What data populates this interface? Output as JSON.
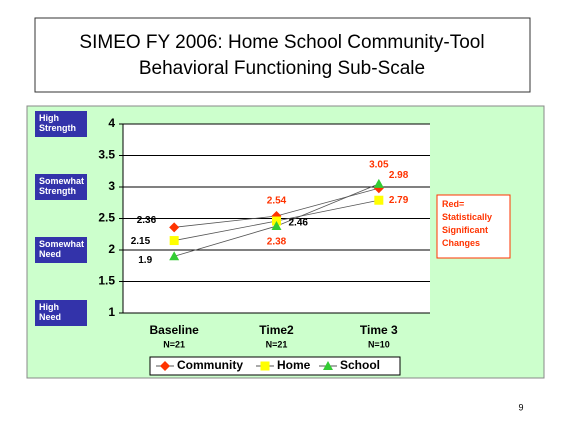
{
  "chart_data": {
    "type": "line",
    "title": "SIMEO FY 2006: Home School Community-Tool",
    "subtitle": "Behavioral Functioning Sub-Scale",
    "categories": [
      "Baseline",
      "Time2",
      "Time 3"
    ],
    "category_notes": [
      "N=21",
      "N=21",
      "N=10"
    ],
    "series": [
      {
        "name": "Community",
        "color": "#ff3300",
        "marker": "diamond",
        "values": [
          2.36,
          2.54,
          2.98
        ],
        "label_colors": [
          "#000000",
          "#ff3300",
          "#ff3300"
        ]
      },
      {
        "name": "Home",
        "color": "#ffff00",
        "marker": "square",
        "values": [
          2.15,
          2.46,
          2.79
        ],
        "label_colors": [
          "#000000",
          "#000000",
          "#ff3300"
        ]
      },
      {
        "name": "School",
        "color": "#33cc33",
        "marker": "triangle",
        "values": [
          1.9,
          2.38,
          3.05
        ],
        "label_colors": [
          "#000000",
          "#ff3300",
          "#ff3300"
        ]
      }
    ],
    "ylim": [
      1,
      4
    ],
    "yticks": [
      1,
      1.5,
      2,
      2.5,
      3,
      3.5,
      4
    ],
    "y_labels": [
      {
        "value": 4,
        "label": "High Strength"
      },
      {
        "value": 3,
        "label": "Somewhat Strength"
      },
      {
        "value": 2,
        "label": "Somewhat Need"
      },
      {
        "value": 1,
        "label": "High Need"
      }
    ],
    "grid": true,
    "annotation": "Red= Statistically Significant Changes",
    "page_number": "9"
  }
}
